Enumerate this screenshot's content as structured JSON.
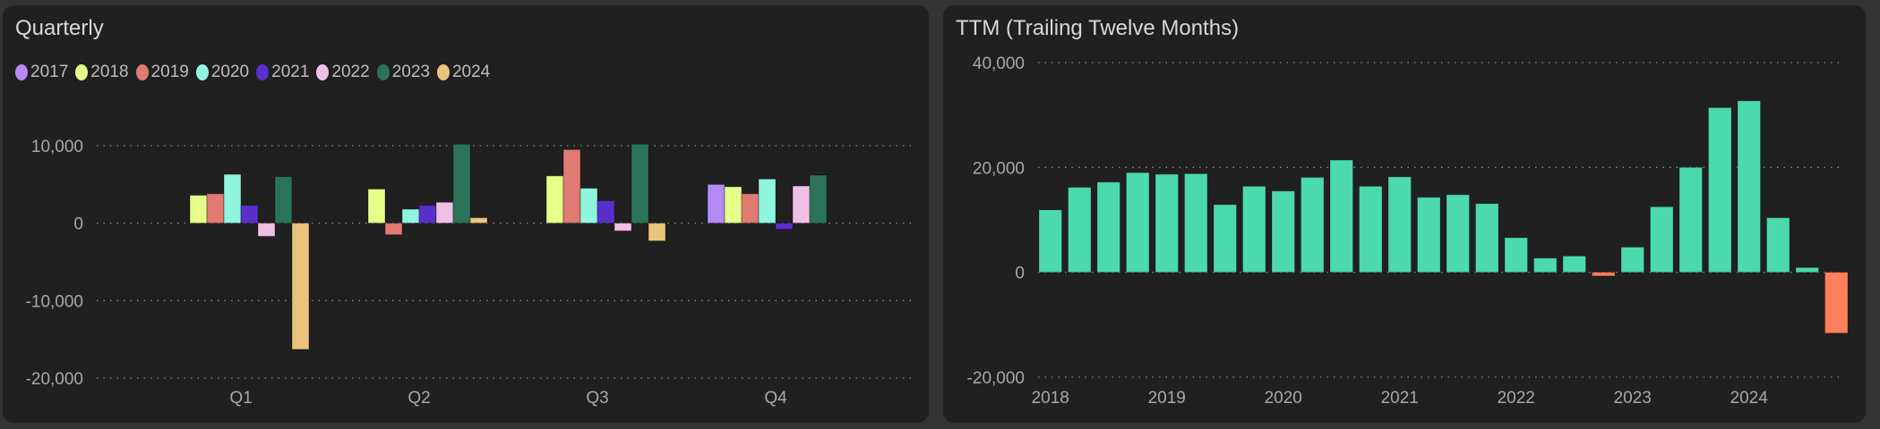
{
  "chart_data": [
    {
      "type": "bar",
      "title": "Quarterly",
      "categories": [
        "Q1",
        "Q2",
        "Q3",
        "Q4"
      ],
      "ylim": [
        -20000,
        10000
      ],
      "yticks": [
        10000,
        0,
        -10000,
        -20000
      ],
      "ytick_labels": [
        "10,000",
        "0",
        "-10,000",
        "-20,000"
      ],
      "grid": true,
      "legend_position": "top-left",
      "series": [
        {
          "name": "2017",
          "color": "#b48af5",
          "values": [
            null,
            null,
            null,
            5000
          ]
        },
        {
          "name": "2018",
          "color": "#e5ff8a",
          "values": [
            3600,
            4400,
            6100,
            4700
          ]
        },
        {
          "name": "2019",
          "color": "#e07a72",
          "values": [
            3800,
            -1500,
            9500,
            3800
          ]
        },
        {
          "name": "2020",
          "color": "#8ff5de",
          "values": [
            6300,
            1800,
            4500,
            5700
          ]
        },
        {
          "name": "2021",
          "color": "#5a30cc",
          "values": [
            2300,
            2300,
            2900,
            -800
          ]
        },
        {
          "name": "2022",
          "color": "#f0c0e3",
          "values": [
            -1700,
            2700,
            -1000,
            4800
          ]
        },
        {
          "name": "2023",
          "color": "#2a7359",
          "values": [
            6000,
            10200,
            10200,
            6200
          ]
        },
        {
          "name": "2024",
          "color": "#ebc47c",
          "values": [
            -16300,
            700,
            -2300,
            null
          ]
        }
      ]
    },
    {
      "type": "bar",
      "title": "TTM (Trailing Twelve Months)",
      "ylim": [
        -20000,
        40000
      ],
      "yticks": [
        40000,
        20000,
        0,
        -20000
      ],
      "ytick_labels": [
        "40,000",
        "20,000",
        "0",
        "-20,000"
      ],
      "grid": true,
      "x_labels": [
        "2018",
        "2019",
        "2020",
        "2021",
        "2022",
        "2023",
        "2024"
      ],
      "positive_color": "#4cd9ae",
      "negative_color": "#ff7f5a",
      "values": [
        11900,
        16200,
        17200,
        19000,
        18700,
        18800,
        12900,
        16400,
        15500,
        18100,
        21400,
        16400,
        18200,
        14300,
        14800,
        13100,
        6600,
        2700,
        3100,
        -700,
        4800,
        12500,
        20000,
        31400,
        32700,
        10400,
        900,
        -11600
      ]
    }
  ]
}
